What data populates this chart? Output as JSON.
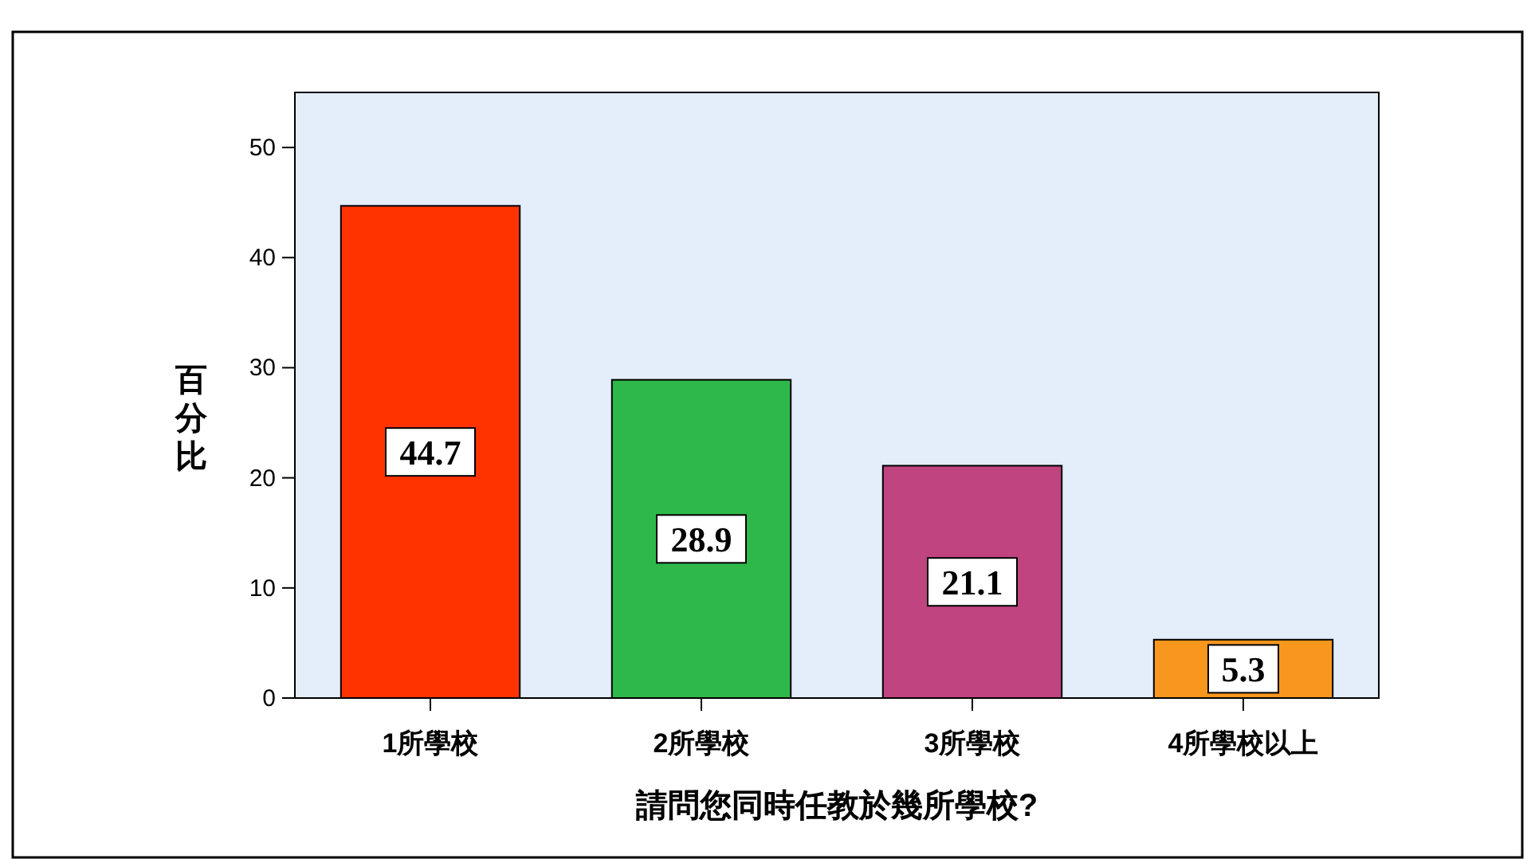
{
  "chart_data": {
    "type": "bar",
    "xlabel": "請問您同時任教於幾所學校?",
    "ylabel": "百分比",
    "categories": [
      "1所學校",
      "2所學校",
      "3所學校",
      "4所學校以上"
    ],
    "values": [
      44.7,
      28.9,
      21.1,
      5.3
    ],
    "colors": [
      "#ff3300",
      "#2fb84a",
      "#c04480",
      "#f7971e"
    ],
    "ylim": [
      0,
      55
    ],
    "yticks": [
      0,
      10,
      20,
      30,
      40,
      50
    ],
    "data_labels": true,
    "grid": false
  }
}
